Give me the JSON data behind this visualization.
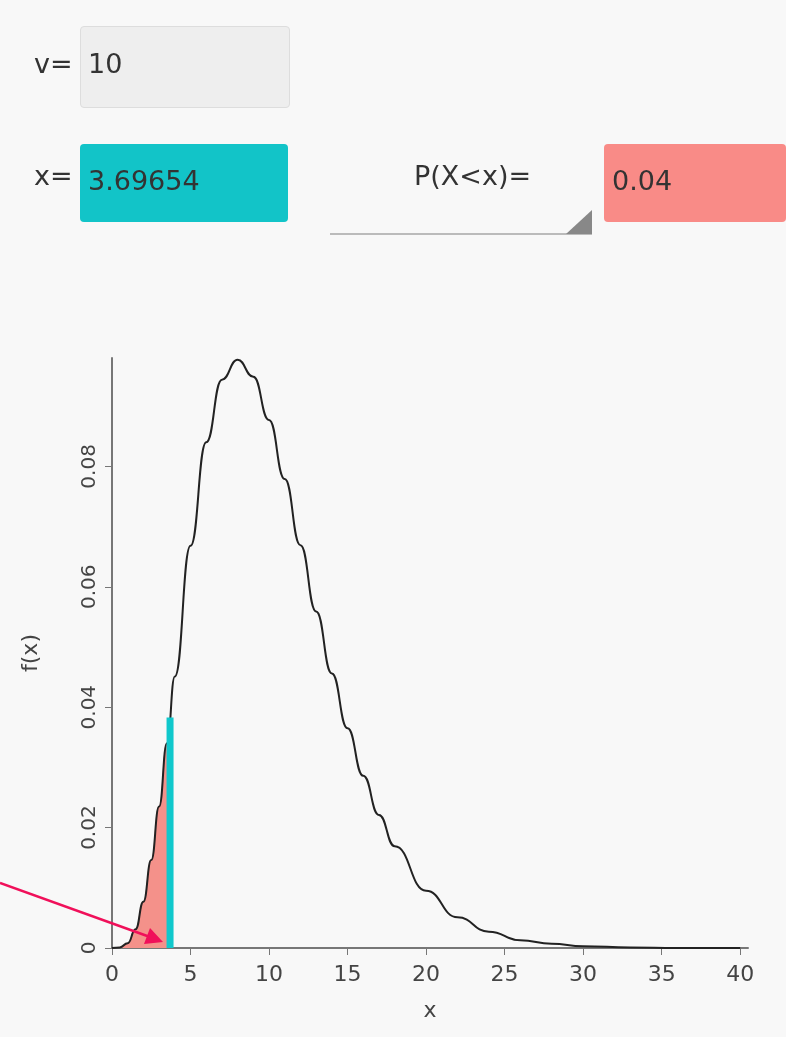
{
  "chart_data": {
    "type": "line",
    "xlabel": "x",
    "ylabel": "f(x)",
    "xlim": [
      0,
      40.5
    ],
    "xticks": [
      0,
      5,
      10,
      15,
      20,
      25,
      30,
      35,
      40
    ],
    "ylim": [
      0,
      0.098
    ],
    "yticks": [
      0,
      0.02,
      0.04,
      0.06,
      0.08
    ],
    "grid": false,
    "marker": "none",
    "line_style": "solid",
    "annotations": [
      "v=",
      "10",
      "x=",
      "3.69654",
      "P(X<x)=",
      "0.04"
    ],
    "series": [
      {
        "color": "#222222",
        "x": [
          0,
          0.5,
          1,
          1.5,
          2,
          2.5,
          3,
          3.5,
          4,
          5,
          6,
          7,
          8,
          9,
          10,
          11,
          12,
          13,
          14,
          15,
          16,
          17,
          18,
          20,
          22,
          24,
          26,
          28,
          30,
          33,
          36,
          40
        ],
        "values": [
          0,
          0.0001,
          0.0008,
          0.0031,
          0.0077,
          0.0146,
          0.0235,
          0.034,
          0.0451,
          0.0668,
          0.084,
          0.0944,
          0.0977,
          0.0949,
          0.0877,
          0.0779,
          0.0669,
          0.0559,
          0.0456,
          0.0365,
          0.0286,
          0.0221,
          0.0169,
          0.0095,
          0.0051,
          0.0027,
          0.0013,
          0.0007,
          0.0003,
          0.0001,
          0,
          0
        ]
      },
      {
        "type": "area",
        "color": "#f4918a",
        "x": [
          0,
          0.5,
          1,
          1.5,
          2,
          2.5,
          3,
          3.5,
          3.69654
        ],
        "values": [
          0,
          0.0001,
          0.0008,
          0.0031,
          0.0077,
          0.0146,
          0.0235,
          0.034,
          0.0383
        ]
      },
      {
        "type": "line",
        "color": "#10c8cc",
        "x": [
          3.69654,
          3.69654
        ],
        "values": [
          0,
          0.0383
        ]
      }
    ]
  }
}
